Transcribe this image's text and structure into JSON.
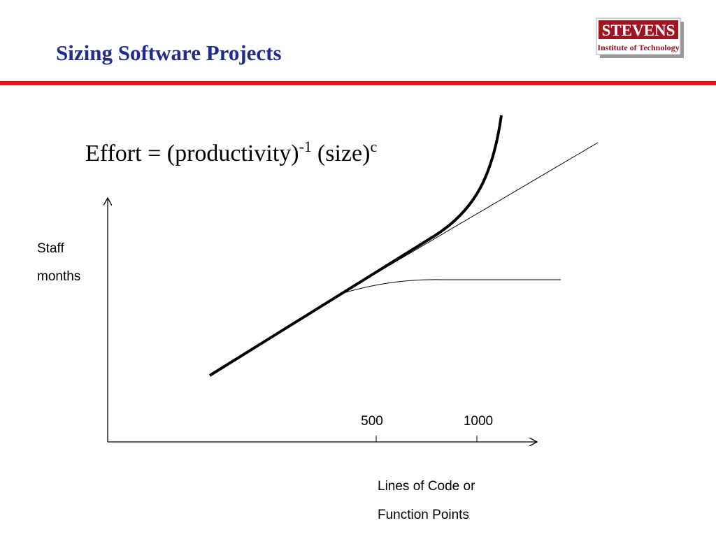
{
  "header": {
    "title": "Sizing Software Projects",
    "logo": {
      "name": "STEVENS",
      "subtitle": "Institute of Technology"
    }
  },
  "formula": {
    "base": "Effort = (productivity)",
    "exponent_productivity": "-1",
    "size": "(size)",
    "exponent_size": "c"
  },
  "axes": {
    "y_label": [
      "Staff",
      "months"
    ],
    "x_label": [
      "Lines of Code or",
      "Function Points"
    ],
    "x_ticks": [
      "500",
      "1000"
    ]
  }
}
